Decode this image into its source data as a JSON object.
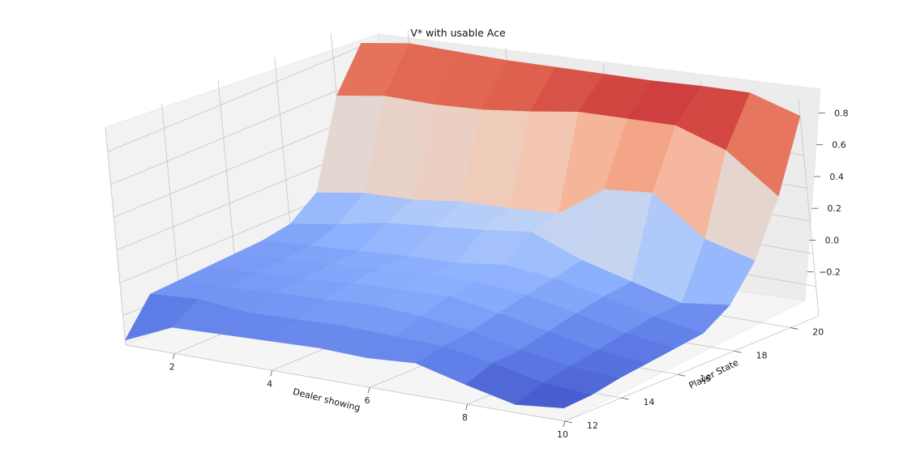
{
  "chart_data": {
    "type": "surface3d",
    "title": "V* with usable Ace",
    "xlabel": "Dealer showing",
    "ylabel": "Player State",
    "zlabel": "",
    "x": [
      1,
      2,
      3,
      4,
      5,
      6,
      7,
      8,
      9,
      10
    ],
    "y": [
      12,
      13,
      14,
      15,
      16,
      17,
      18,
      19,
      20,
      21
    ],
    "xticks": [
      "2",
      "4",
      "6",
      "8",
      "10"
    ],
    "yticks": [
      "12",
      "14",
      "16",
      "18",
      "20"
    ],
    "zticks": [
      "−0.2",
      "0.0",
      "0.2",
      "0.4",
      "0.6",
      "0.8"
    ],
    "zlim": [
      -0.38,
      0.95
    ],
    "colormap": "coolwarm",
    "grid": true,
    "z": [
      [
        -0.35,
        -0.22,
        -0.21,
        -0.2,
        -0.19,
        -0.2,
        -0.18,
        -0.26,
        -0.33,
        -0.3
      ],
      [
        -0.14,
        -0.12,
        -0.15,
        -0.14,
        -0.13,
        -0.14,
        -0.15,
        -0.2,
        -0.27,
        -0.29
      ],
      [
        -0.13,
        -0.12,
        -0.1,
        -0.09,
        -0.07,
        -0.09,
        -0.13,
        -0.19,
        -0.24,
        -0.26
      ],
      [
        -0.12,
        -0.1,
        -0.09,
        -0.06,
        -0.05,
        -0.04,
        -0.09,
        -0.15,
        -0.21,
        -0.24
      ],
      [
        -0.11,
        -0.09,
        -0.07,
        -0.04,
        -0.03,
        -0.02,
        -0.05,
        -0.11,
        -0.18,
        -0.22
      ],
      [
        -0.1,
        -0.08,
        -0.06,
        -0.04,
        -0.03,
        0.01,
        -0.02,
        -0.08,
        -0.15,
        -0.2
      ],
      [
        -0.07,
        -0.02,
        0.04,
        0.07,
        0.1,
        0.14,
        0.02,
        -0.06,
        -0.14,
        -0.1
      ],
      [
        0.05,
        0.1,
        0.11,
        0.15,
        0.16,
        0.18,
        0.38,
        0.41,
        0.18,
        0.1
      ],
      [
        0.57,
        0.62,
        0.62,
        0.64,
        0.68,
        0.73,
        0.74,
        0.75,
        0.65,
        0.42
      ],
      [
        0.82,
        0.87,
        0.87,
        0.87,
        0.88,
        0.89,
        0.9,
        0.92,
        0.93,
        0.84
      ]
    ]
  }
}
